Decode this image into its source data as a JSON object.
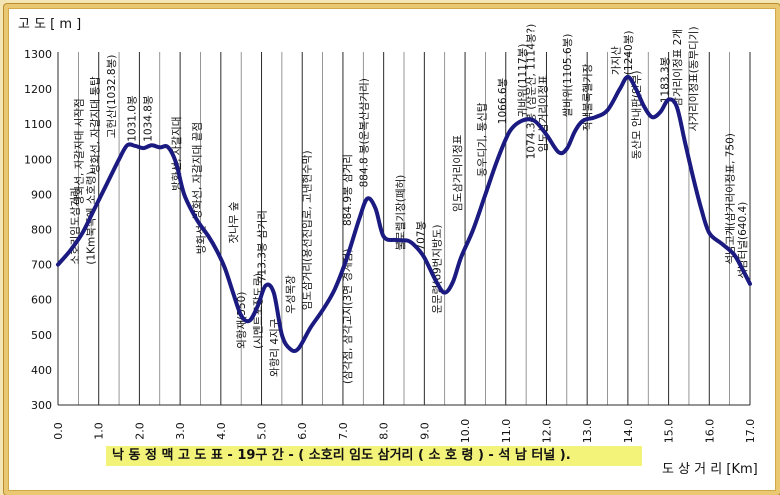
{
  "chart_data": {
    "type": "line",
    "title": "낙 동 정 맥 고 도 표  - 19구 간  - ( 소호리 임도 삼거리 ( 소 호 령 ) - 석 남 터널 ).",
    "xlabel": "도 상 거 리 [Km]",
    "ylabel": "고 도 [ m ]",
    "xlim": [
      0,
      17
    ],
    "ylim": [
      300,
      1300
    ],
    "xticks": [
      "0.0",
      "1.0",
      "2.0",
      "3.0",
      "4.0",
      "5.0",
      "6.0",
      "7.0",
      "8.0",
      "9.0",
      "10.0",
      "11.0",
      "12.0",
      "13.0",
      "14.0",
      "15.0",
      "16.0",
      "17.0"
    ],
    "yticks": [
      "300",
      "400",
      "500",
      "600",
      "700",
      "800",
      "900",
      "1000",
      "1100",
      "1200",
      "1300"
    ],
    "grid": "vertical",
    "series": [
      {
        "color": "#1a1a80",
        "x": [
          0.0,
          0.3,
          0.6,
          0.9,
          1.2,
          1.5,
          1.7,
          1.9,
          2.1,
          2.3,
          2.5,
          2.7,
          2.9,
          3.1,
          3.4,
          3.7,
          3.9,
          4.1,
          4.3,
          4.5,
          4.7,
          4.9,
          5.1,
          5.3,
          5.5,
          5.7,
          5.9,
          6.2,
          6.5,
          6.8,
          7.1,
          7.4,
          7.6,
          7.8,
          8.0,
          8.3,
          8.6,
          8.8,
          9.0,
          9.3,
          9.5,
          9.7,
          9.9,
          10.2,
          10.5,
          10.8,
          11.1,
          11.4,
          11.7,
          12.0,
          12.3,
          12.5,
          12.7,
          12.9,
          13.2,
          13.5,
          13.8,
          14.0,
          14.2,
          14.4,
          14.6,
          14.8,
          15.0,
          15.2,
          15.4,
          15.6,
          15.8,
          16.0,
          16.3,
          16.6,
          16.8,
          17.0
        ],
        "y": [
          700,
          740,
          790,
          860,
          930,
          1000,
          1040,
          1038,
          1032,
          1040,
          1034,
          1035,
          990,
          900,
          830,
          780,
          740,
          690,
          620,
          555,
          540,
          580,
          640,
          620,
          500,
          460,
          460,
          520,
          570,
          630,
          720,
          830,
          888,
          860,
          780,
          770,
          768,
          750,
          720,
          650,
          620,
          650,
          720,
          800,
          900,
          1000,
          1080,
          1110,
          1110,
          1070,
          1020,
          1030,
          1080,
          1110,
          1120,
          1140,
          1200,
          1235,
          1200,
          1150,
          1120,
          1135,
          1170,
          1150,
          1050,
          950,
          860,
          790,
          760,
          730,
          690,
          645
        ]
      }
    ],
    "annotations": [
      {
        "x": 0.5,
        "y": 700,
        "text": "소호리임도삼거리"
      },
      {
        "x": 0.9,
        "y": 700,
        "text": "(1Km북쪽에 소호령)"
      },
      {
        "x": 0.6,
        "y": 870,
        "text": "방화선, 자갈지대 시작점"
      },
      {
        "x": 1.0,
        "y": 960,
        "text": "방화선, 자갈지대 통탑"
      },
      {
        "x": 1.4,
        "y": 1060,
        "text": "고헌산(1032.8봉)"
      },
      {
        "x": 1.9,
        "y": 1050,
        "text": "1031.0봉"
      },
      {
        "x": 2.3,
        "y": 1050,
        "text": "1034.8봉"
      },
      {
        "x": 3.0,
        "y": 910,
        "text": "방화선, 자갈지대"
      },
      {
        "x": 3.5,
        "y": 830,
        "text": "방화선, 자갈지대 끝점"
      },
      {
        "x": 3.6,
        "y": 730,
        "text": "방화선"
      },
      {
        "x": 4.4,
        "y": 760,
        "text": "잣나무 숲"
      },
      {
        "x": 4.6,
        "y": 460,
        "text": "외항재(550)"
      },
      {
        "x": 5.0,
        "y": 460,
        "text": "(시멘트포장도로)"
      },
      {
        "x": 5.1,
        "y": 650,
        "text": "713.3봉 삼거리"
      },
      {
        "x": 5.4,
        "y": 380,
        "text": "와항리 4지구"
      },
      {
        "x": 5.8,
        "y": 560,
        "text": "우성목장"
      },
      {
        "x": 6.2,
        "y": 570,
        "text": "임도삼거리(용선진입로, 고낸현수막)"
      },
      {
        "x": 7.2,
        "y": 810,
        "text": "884.9봉 삼거리"
      },
      {
        "x": 7.2,
        "y": 360,
        "text": "(삼각점, 삼각고지(3면 경계점)"
      },
      {
        "x": 7.6,
        "y": 920,
        "text": "884.8 봉(운복산삼거리)"
      },
      {
        "x": 8.5,
        "y": 740,
        "text": "불로렐기장(폐허)"
      },
      {
        "x": 9.0,
        "y": 740,
        "text": "707봉"
      },
      {
        "x": 9.4,
        "y": 560,
        "text": "운문령(69번지방도)"
      },
      {
        "x": 9.9,
        "y": 850,
        "text": "임도삼거리이정표"
      },
      {
        "x": 10.5,
        "y": 950,
        "text": "동우디기, 통신탑"
      },
      {
        "x": 11.0,
        "y": 1100,
        "text": "1066.6봉"
      },
      {
        "x": 11.5,
        "y": 1120,
        "text": "귀바위(1117봉)"
      },
      {
        "x": 11.7,
        "y": 1000,
        "text": "1074.3봉 (삼운산, 1114봉?)"
      },
      {
        "x": 12.0,
        "y": 1020,
        "text": "임도삼거리이정표"
      },
      {
        "x": 12.6,
        "y": 1120,
        "text": "쌀바위(1105.6봉)"
      },
      {
        "x": 13.1,
        "y": 1080,
        "text": "적색불록헬기장"
      },
      {
        "x": 13.8,
        "y": 1240,
        "text": "가지산"
      },
      {
        "x": 14.1,
        "y": 1240,
        "text": "(1240봉)"
      },
      {
        "x": 14.3,
        "y": 1000,
        "text": "동산모 안내판(안부)"
      },
      {
        "x": 15.0,
        "y": 1160,
        "text": "1183.3봉"
      },
      {
        "x": 15.3,
        "y": 1150,
        "text": "삼거리이정표 2개"
      },
      {
        "x": 15.7,
        "y": 1080,
        "text": "사거리이정표(동부디기)"
      },
      {
        "x": 16.6,
        "y": 700,
        "text": "석남고개(삼거리이정표, 750)"
      },
      {
        "x": 16.9,
        "y": 660,
        "text": "석남터널(640.4)"
      }
    ]
  }
}
